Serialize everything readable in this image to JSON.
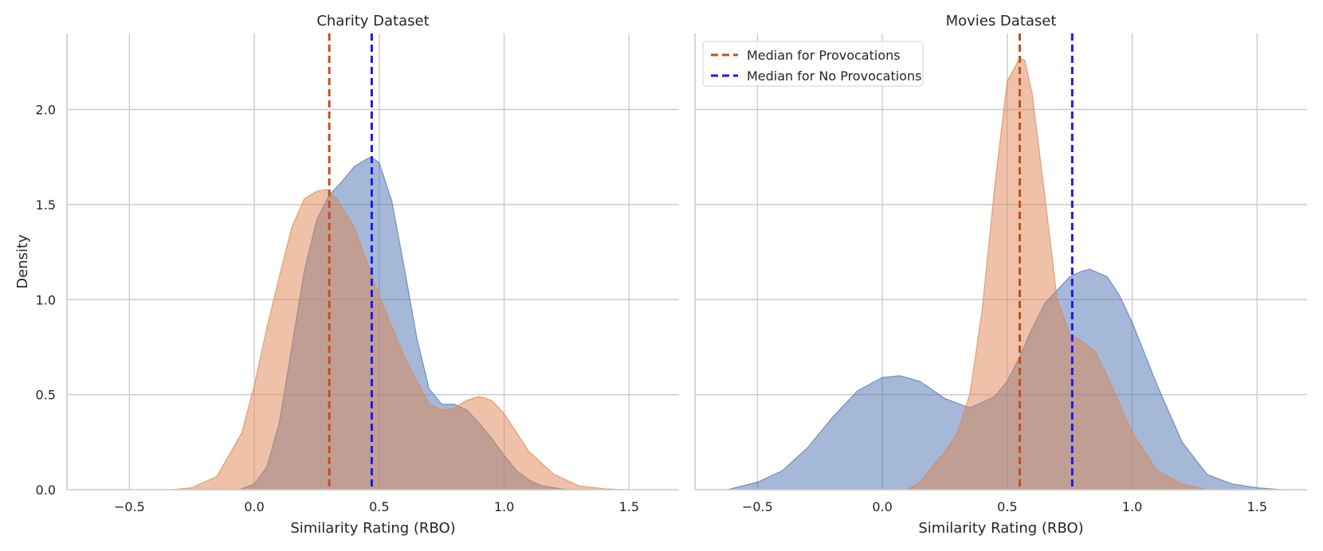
{
  "chart_data": [
    {
      "type": "area",
      "title": "Charity Dataset",
      "xlabel": "Similarity Rating (RBO)",
      "ylabel": "Density",
      "xlim": [
        -0.75,
        1.7
      ],
      "ylim": [
        0,
        2.4
      ],
      "xticks": [
        -0.5,
        0.0,
        0.5,
        1.0,
        1.5
      ],
      "xtick_labels": [
        "−0.5",
        "0.0",
        "0.5",
        "1.0",
        "1.5"
      ],
      "yticks": [
        0.0,
        0.5,
        1.0,
        1.5,
        2.0
      ],
      "ytick_labels": [
        "0.0",
        "0.5",
        "1.0",
        "1.5",
        "2.0"
      ],
      "grid": true,
      "series": [
        {
          "name": "No Provocations",
          "color": "#4C72B0",
          "x": [
            -0.06,
            0.0,
            0.05,
            0.1,
            0.15,
            0.2,
            0.25,
            0.3,
            0.35,
            0.4,
            0.45,
            0.47,
            0.5,
            0.55,
            0.6,
            0.65,
            0.7,
            0.75,
            0.8,
            0.85,
            0.9,
            0.95,
            1.0,
            1.05,
            1.1,
            1.15,
            1.2,
            1.25
          ],
          "y": [
            0.0,
            0.03,
            0.12,
            0.35,
            0.75,
            1.15,
            1.42,
            1.55,
            1.62,
            1.7,
            1.74,
            1.75,
            1.72,
            1.52,
            1.17,
            0.8,
            0.53,
            0.45,
            0.45,
            0.42,
            0.35,
            0.27,
            0.18,
            0.1,
            0.05,
            0.02,
            0.01,
            0.0
          ]
        },
        {
          "name": "Provocations",
          "color": "#DD8452",
          "x": [
            -0.33,
            -0.25,
            -0.15,
            -0.05,
            0.0,
            0.05,
            0.1,
            0.15,
            0.2,
            0.25,
            0.29,
            0.33,
            0.4,
            0.5,
            0.6,
            0.7,
            0.75,
            0.8,
            0.85,
            0.9,
            0.95,
            1.0,
            1.05,
            1.1,
            1.2,
            1.3,
            1.4,
            1.48
          ],
          "y": [
            0.0,
            0.01,
            0.07,
            0.3,
            0.55,
            0.85,
            1.12,
            1.38,
            1.53,
            1.57,
            1.58,
            1.53,
            1.38,
            1.02,
            0.7,
            0.45,
            0.42,
            0.43,
            0.47,
            0.49,
            0.47,
            0.4,
            0.3,
            0.2,
            0.08,
            0.02,
            0.005,
            0.0
          ]
        }
      ],
      "medians": [
        {
          "name": "Median for Provocations",
          "x": 0.3,
          "color": "#C44E1F"
        },
        {
          "name": "Median for No Provocations",
          "x": 0.47,
          "color": "#1A1AEE"
        }
      ]
    },
    {
      "type": "area",
      "title": "Movies Dataset",
      "xlabel": "Similarity Rating (RBO)",
      "ylabel": "",
      "xlim": [
        -0.75,
        1.7
      ],
      "ylim": [
        0,
        2.4
      ],
      "xticks": [
        -0.5,
        0.0,
        0.5,
        1.0,
        1.5
      ],
      "xtick_labels": [
        "−0.5",
        "0.0",
        "0.5",
        "1.0",
        "1.5"
      ],
      "yticks": [
        0.0,
        0.5,
        1.0,
        1.5,
        2.0
      ],
      "ytick_labels": [],
      "grid": true,
      "legend": {
        "location": "top-left",
        "entries": [
          "Median for Provocations",
          "Median for No Provocations"
        ]
      },
      "series": [
        {
          "name": "No Provocations",
          "color": "#4C72B0",
          "x": [
            -0.62,
            -0.5,
            -0.4,
            -0.3,
            -0.2,
            -0.1,
            0.0,
            0.07,
            0.15,
            0.25,
            0.35,
            0.45,
            0.5,
            0.55,
            0.6,
            0.65,
            0.7,
            0.75,
            0.8,
            0.83,
            0.9,
            0.95,
            1.0,
            1.1,
            1.2,
            1.3,
            1.4,
            1.5,
            1.6
          ],
          "y": [
            0.0,
            0.04,
            0.1,
            0.22,
            0.38,
            0.52,
            0.59,
            0.6,
            0.57,
            0.48,
            0.43,
            0.49,
            0.57,
            0.7,
            0.85,
            0.98,
            1.05,
            1.12,
            1.15,
            1.16,
            1.12,
            1.02,
            0.88,
            0.55,
            0.25,
            0.08,
            0.03,
            0.01,
            0.0
          ]
        },
        {
          "name": "Provocations",
          "color": "#DD8452",
          "x": [
            0.1,
            0.15,
            0.2,
            0.25,
            0.3,
            0.35,
            0.4,
            0.45,
            0.5,
            0.55,
            0.57,
            0.6,
            0.65,
            0.7,
            0.75,
            0.8,
            0.85,
            0.9,
            0.95,
            1.0,
            1.05,
            1.1,
            1.2,
            1.3
          ],
          "y": [
            0.0,
            0.04,
            0.12,
            0.2,
            0.3,
            0.5,
            0.95,
            1.6,
            2.15,
            2.27,
            2.26,
            2.08,
            1.55,
            1.0,
            0.82,
            0.78,
            0.73,
            0.6,
            0.45,
            0.3,
            0.2,
            0.1,
            0.03,
            0.0
          ]
        }
      ],
      "medians": [
        {
          "name": "Median for Provocations",
          "x": 0.55,
          "color": "#C44E1F"
        },
        {
          "name": "Median for No Provocations",
          "x": 0.76,
          "color": "#1A1AEE"
        }
      ]
    }
  ]
}
